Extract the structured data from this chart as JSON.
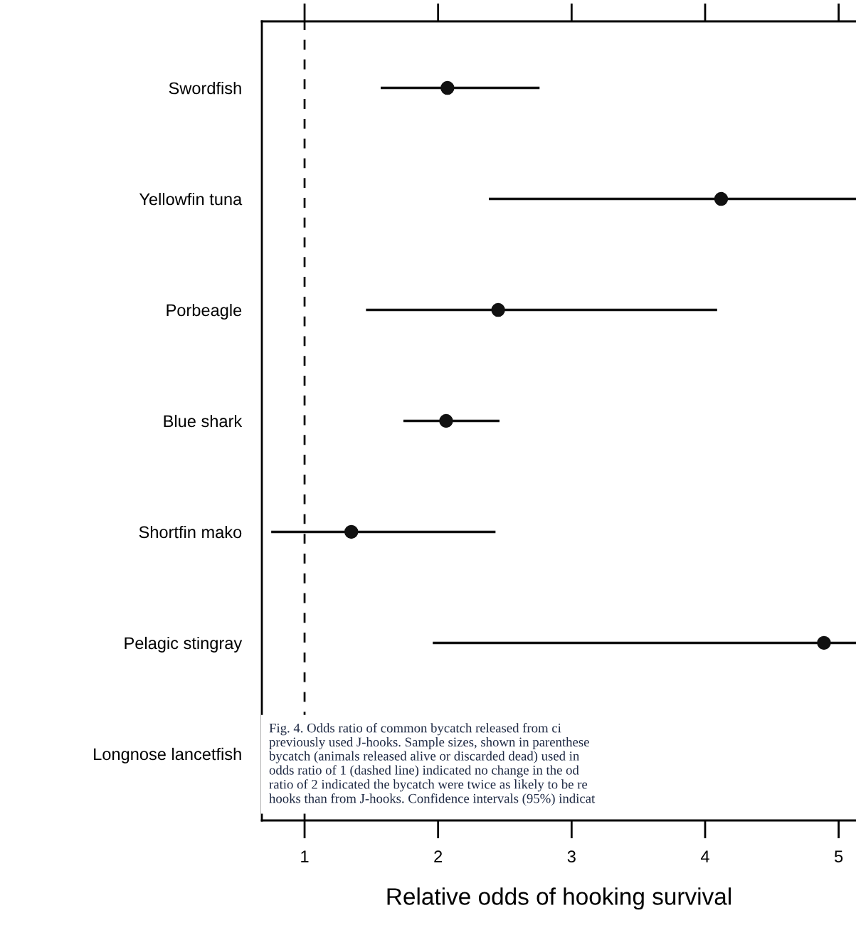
{
  "chart_data": {
    "type": "scatter",
    "orientation": "horizontal",
    "xlabel": "Relative odds of hooking survival",
    "categories": [
      "Swordfish",
      "Yellowfin tuna",
      "Porbeagle",
      "Blue shark",
      "Shortfin mako",
      "Pelagic stingray",
      "Longnose lancetfish"
    ],
    "values": [
      2.07,
      4.12,
      2.45,
      2.06,
      1.35,
      4.89,
      null
    ],
    "errors": [
      [
        1.57,
        2.76
      ],
      [
        2.38,
        5.13
      ],
      [
        1.46,
        4.09
      ],
      [
        1.74,
        2.46
      ],
      [
        0.75,
        2.43
      ],
      [
        1.96,
        5.13
      ],
      null
    ],
    "color": "#111111",
    "marker": "circle",
    "xlim": [
      0.68,
      5.13
    ],
    "xticks": [
      1,
      2,
      3,
      4,
      5
    ],
    "ref_lines": [
      {
        "axis": "x",
        "value": 1,
        "line_style": "dashed",
        "color": "#111111"
      }
    ],
    "annotations": [
      "Fig. 4. Odds ratio of common bycatch released from ci\npreviously used J-hooks. Sample sizes, shown in parenthese\nbycatch (animals released alive or discarded dead) used in\nodds ratio of 1 (dashed line) indicated no change in the od\nratio of 2 indicated the bycatch were twice as likely to be re\nhooks than from J-hooks. Confidence intervals (95%) indicat"
    ],
    "grid": false,
    "legend": false
  }
}
